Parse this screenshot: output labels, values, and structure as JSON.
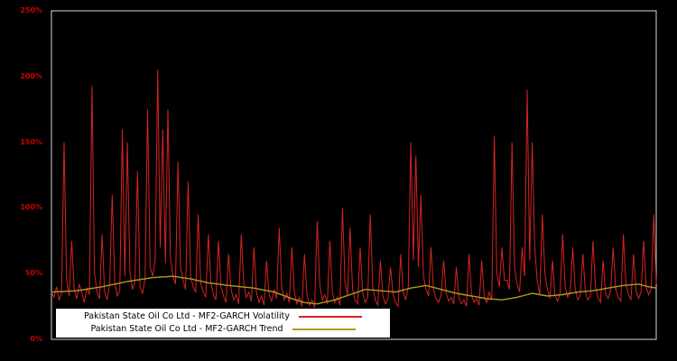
{
  "styles": {
    "background": "#000000",
    "plot_background": "#000000",
    "frame_color": "#d9d9d9",
    "tick_color": "#cc0000",
    "legend_background": "#ffffff",
    "legend_text_color": "#000000"
  },
  "chart_data": {
    "type": "line",
    "title": "",
    "xlabel": "",
    "ylabel": "",
    "ylim": [
      0,
      250
    ],
    "y_ticks": [
      "0%",
      "50%",
      "100%",
      "150%",
      "200%",
      "250%"
    ],
    "grid": false,
    "legend_position": "bottom-left-inside",
    "series": [
      {
        "name": "Pakistan State Oil Co Ltd - MF2-GARCH Volatility",
        "color": "#d62322",
        "values": [
          36,
          32,
          40,
          30,
          35,
          150,
          45,
          33,
          75,
          38,
          31,
          42,
          36,
          28,
          39,
          34,
          193,
          50,
          36,
          31,
          80,
          36,
          30,
          42,
          110,
          44,
          33,
          37,
          160,
          48,
          150,
          52,
          38,
          44,
          128,
          40,
          35,
          46,
          175,
          55,
          48,
          60,
          205,
          70,
          160,
          58,
          175,
          62,
          48,
          42,
          135,
          55,
          45,
          38,
          120,
          48,
          40,
          36,
          95,
          42,
          36,
          32,
          80,
          44,
          34,
          30,
          75,
          40,
          33,
          28,
          65,
          38,
          30,
          34,
          27,
          80,
          42,
          32,
          36,
          29,
          70,
          36,
          28,
          33,
          26,
          60,
          34,
          29,
          38,
          31,
          85,
          40,
          30,
          35,
          28,
          70,
          36,
          27,
          32,
          25,
          65,
          34,
          26,
          30,
          24,
          90,
          42,
          30,
          34,
          27,
          75,
          36,
          28,
          32,
          26,
          100,
          44,
          33,
          85,
          38,
          30,
          27,
          70,
          35,
          28,
          32,
          95,
          40,
          30,
          26,
          60,
          33,
          27,
          31,
          55,
          34,
          28,
          25,
          65,
          36,
          30,
          40,
          150,
          60,
          140,
          55,
          110,
          48,
          38,
          33,
          70,
          38,
          31,
          28,
          34,
          60,
          35,
          29,
          32,
          27,
          55,
          32,
          27,
          30,
          25,
          65,
          34,
          28,
          31,
          26,
          60,
          33,
          28,
          36,
          30,
          155,
          50,
          40,
          70,
          45,
          45,
          38,
          150,
          55,
          42,
          36,
          70,
          48,
          190,
          60,
          150,
          70,
          44,
          34,
          95,
          50,
          38,
          31,
          60,
          33,
          29,
          35,
          80,
          40,
          32,
          36,
          70,
          38,
          30,
          34,
          65,
          36,
          30,
          33,
          75,
          40,
          32,
          28,
          60,
          35,
          31,
          37,
          70,
          38,
          32,
          29,
          80,
          42,
          34,
          30,
          65,
          37,
          31,
          36,
          75,
          40,
          34,
          38,
          95,
          42
        ]
      },
      {
        "name": "Pakistan State Oil Co Ltd - MF2-GARCH Trend",
        "color": "#b49a1e",
        "keypoints": [
          [
            0,
            36
          ],
          [
            10,
            37
          ],
          [
            20,
            40
          ],
          [
            30,
            44
          ],
          [
            40,
            47
          ],
          [
            48,
            48
          ],
          [
            55,
            46
          ],
          [
            62,
            43
          ],
          [
            70,
            41
          ],
          [
            80,
            39
          ],
          [
            88,
            36
          ],
          [
            95,
            31
          ],
          [
            100,
            28
          ],
          [
            105,
            27
          ],
          [
            112,
            30
          ],
          [
            118,
            34
          ],
          [
            124,
            38
          ],
          [
            130,
            37
          ],
          [
            136,
            36
          ],
          [
            142,
            39
          ],
          [
            148,
            41
          ],
          [
            154,
            38
          ],
          [
            160,
            35
          ],
          [
            166,
            33
          ],
          [
            172,
            31
          ],
          [
            178,
            30
          ],
          [
            184,
            32
          ],
          [
            190,
            35
          ],
          [
            196,
            33
          ],
          [
            202,
            34
          ],
          [
            208,
            36
          ],
          [
            214,
            37
          ],
          [
            220,
            39
          ],
          [
            226,
            41
          ],
          [
            232,
            42
          ],
          [
            236,
            40
          ],
          [
            239,
            39
          ]
        ]
      }
    ]
  }
}
